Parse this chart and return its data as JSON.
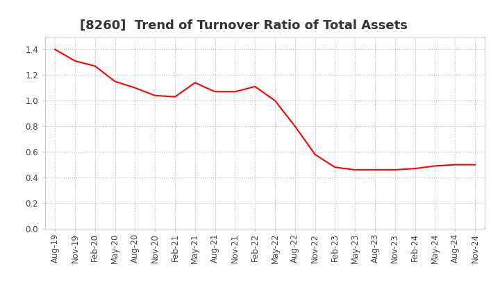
{
  "title": "[8260]  Trend of Turnover Ratio of Total Assets",
  "line_color": "#FF0000",
  "background_color": "#FFFFFF",
  "grid_color": "#AAAAAA",
  "ylim": [
    0.0,
    1.5
  ],
  "yticks": [
    0.0,
    0.2,
    0.4,
    0.6,
    0.8,
    1.0,
    1.2,
    1.4
  ],
  "x_labels": [
    "Aug-19",
    "Nov-19",
    "Feb-20",
    "May-20",
    "Aug-20",
    "Nov-20",
    "Feb-21",
    "May-21",
    "Aug-21",
    "Nov-21",
    "Feb-22",
    "May-22",
    "Aug-22",
    "Nov-22",
    "Feb-23",
    "May-23",
    "Aug-23",
    "Nov-23",
    "Feb-24",
    "May-24",
    "Aug-24",
    "Nov-24"
  ],
  "values": [
    1.4,
    1.31,
    1.27,
    1.15,
    1.1,
    1.04,
    1.03,
    1.14,
    1.07,
    1.07,
    1.11,
    1.0,
    0.8,
    0.58,
    0.48,
    0.46,
    0.46,
    0.46,
    0.47,
    0.49,
    0.5,
    0.5
  ],
  "title_fontsize": 13,
  "tick_fontsize": 8.5
}
